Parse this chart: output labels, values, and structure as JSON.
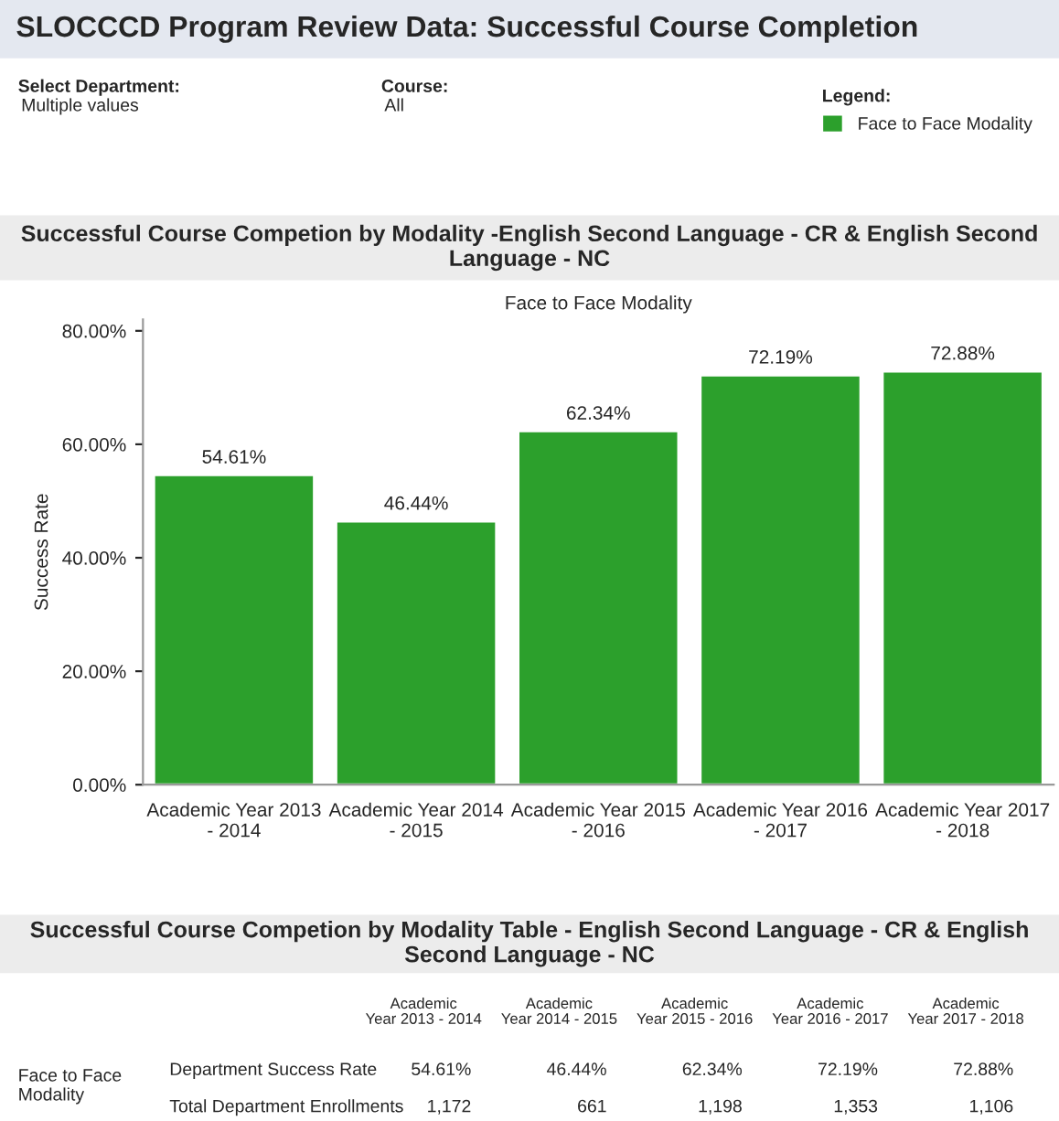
{
  "chart_data": [
    {
      "type": "other",
      "title": "SLOCCCD Program Review Data: Successful Course Completion",
      "annotations": [
        "Select Department:",
        "Multiple values",
        "Course:",
        "All"
      ]
    },
    {
      "type": "bar",
      "title": "Successful Course Competion by Modality -English Second Language - CR & English Second Language - NC",
      "subtitle": "Face to Face Modality",
      "ylabel": "Success Rate",
      "legend_title": "Legend:",
      "legend": "top right",
      "categories": [
        "Academic Year 2013 - 2014",
        "Academic Year 2014 - 2015",
        "Academic Year 2015 - 2016",
        "Academic Year 2016 - 2017",
        "Academic Year 2017 - 2018"
      ],
      "series": [
        {
          "name": "Face to Face Modality",
          "color": "#2ca02c",
          "values": [
            54.61,
            46.44,
            62.34,
            72.19,
            72.88
          ],
          "value_labels": [
            "54.61%",
            "46.44%",
            "62.34%",
            "72.19%",
            "72.88%"
          ]
        }
      ],
      "ylim": [
        0,
        82
      ],
      "yticks": [
        {
          "value": 0,
          "label": "0.00%"
        },
        {
          "value": 20,
          "label": "20.00%"
        },
        {
          "value": 40,
          "label": "40.00%"
        },
        {
          "value": 60,
          "label": "60.00%"
        },
        {
          "value": 80,
          "label": "80.00%"
        }
      ],
      "grid": false
    },
    {
      "type": "other",
      "title": "Successful Course Competion by Modality Table - English Second Language - CR & English Second Language - NC",
      "annotations": [
        "Academic Year 2013 - 2014",
        "Academic Year 2014 - 2015",
        "Academic Year 2015 - 2016",
        "Academic Year 2016 - 2017",
        "Academic Year 2017 - 2018",
        "Face to Face Modality",
        "Department Success Rate",
        "54.61%",
        "46.44%",
        "62.34%",
        "72.19%",
        "72.88%",
        "Total Department Enrollments",
        "1,172",
        "661",
        "1,198",
        "1,353",
        "1,106"
      ]
    }
  ]
}
